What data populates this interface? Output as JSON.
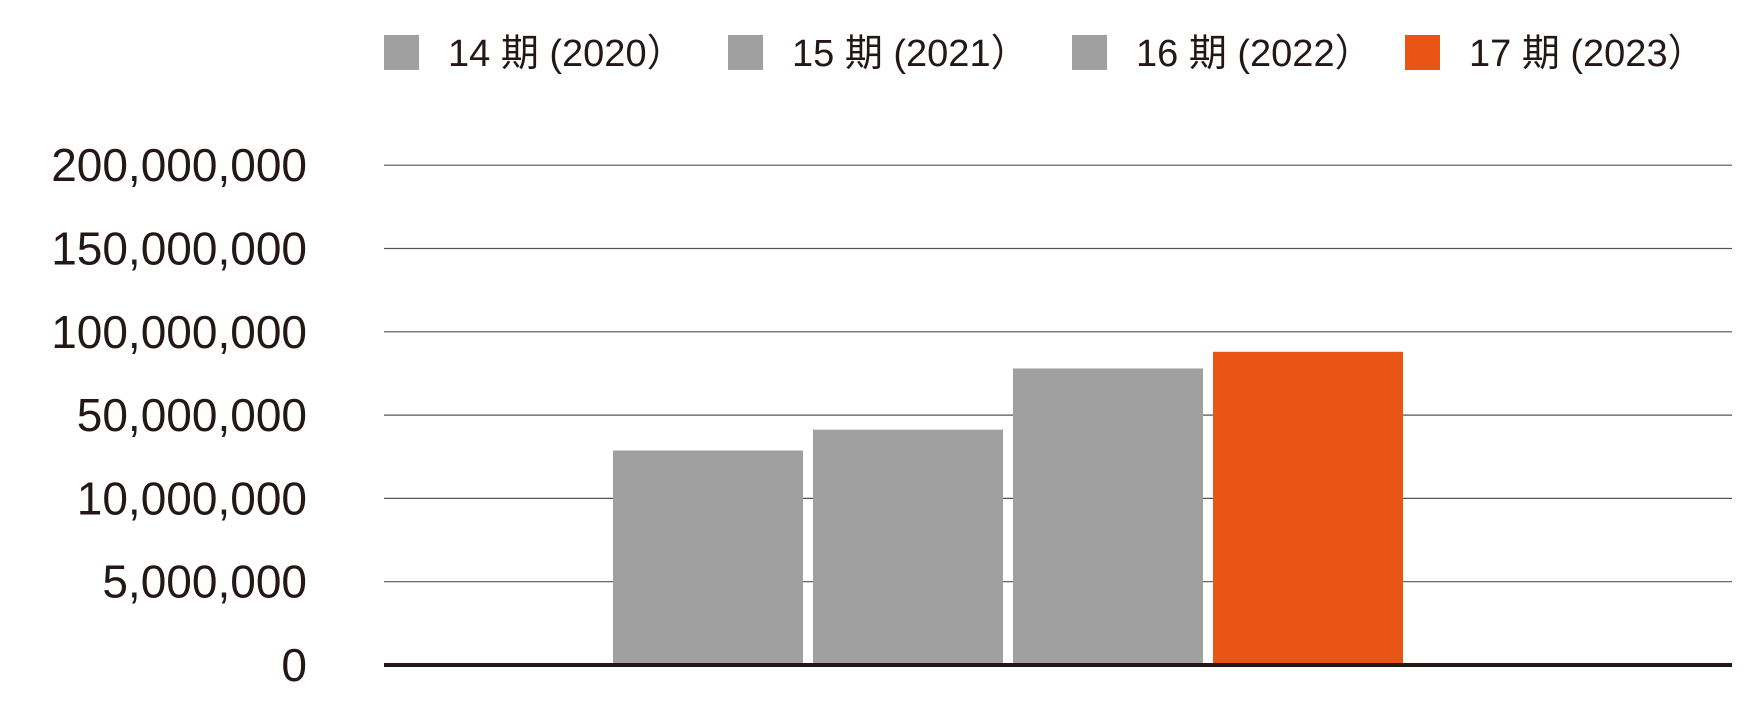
{
  "chart_data": {
    "type": "bar",
    "title": "",
    "xlabel": "",
    "ylabel": "",
    "y_ticks": [
      "0",
      "5,000,000",
      "10,000,000",
      "50,000,000",
      "100,000,000",
      "150,000,000",
      "200,000,000"
    ],
    "y_scale": "non-linear (equally spaced ticks)",
    "grid": true,
    "legend_position": "top",
    "series": [
      {
        "name": "14 期 (2020）",
        "value": 33000000,
        "color": "#a0a0a0"
      },
      {
        "name": "15 期 (2021）",
        "value": 43000000,
        "color": "#a0a0a0"
      },
      {
        "name": "16 期 (2022）",
        "value": 78000000,
        "color": "#a0a0a0"
      },
      {
        "name": "17 期 (2023）",
        "value": 88000000,
        "color": "#e95514"
      }
    ]
  }
}
